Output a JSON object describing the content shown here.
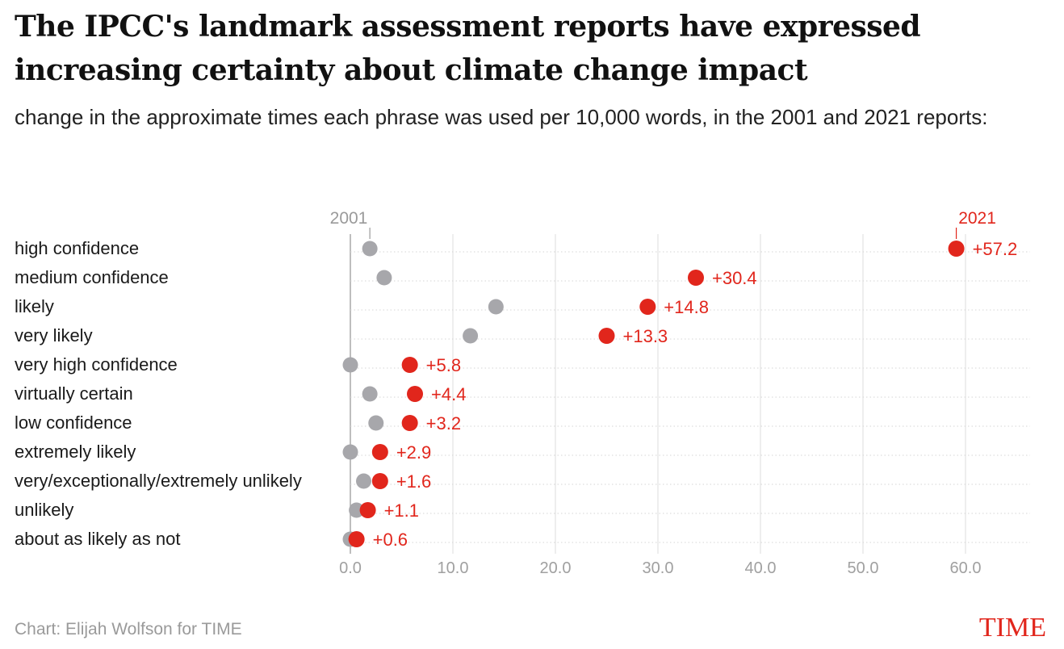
{
  "header": {
    "title": "The IPCC's landmark assessment reports have expressed increasing certainty about climate change impact",
    "subtitle": "change in the approximate times each phrase was used per 10,000 words, in the 2001 and 2021 reports:"
  },
  "footer": {
    "credit": "Chart: Elijah Wolfson for TIME",
    "logo": "TIME"
  },
  "colors": {
    "start": "#a7a7ab",
    "end": "#e1261c",
    "label": "#e1261c",
    "grid": "#e3e3e3",
    "axis_text": "#a0a0a0"
  },
  "chart_data": {
    "type": "dot-plot",
    "title": "",
    "xlabel": "",
    "ylabel": "",
    "xlim": [
      0,
      60
    ],
    "xticks": [
      0,
      10,
      20,
      30,
      40,
      50,
      60
    ],
    "tick_labels": [
      "0.0",
      "10.0",
      "20.0",
      "30.0",
      "40.0",
      "50.0",
      "60.0"
    ],
    "legend": {
      "start": "2001",
      "end": "2021"
    },
    "rows": [
      {
        "label": "high confidence",
        "start": 1.9,
        "end": 59.1,
        "change": "+57.2"
      },
      {
        "label": "medium confidence",
        "start": 3.3,
        "end": 33.7,
        "change": "+30.4"
      },
      {
        "label": "likely",
        "start": 14.2,
        "end": 29.0,
        "change": "+14.8"
      },
      {
        "label": "very likely",
        "start": 11.7,
        "end": 25.0,
        "change": "+13.3"
      },
      {
        "label": "very high confidence",
        "start": 0.0,
        "end": 5.8,
        "change": "+5.8"
      },
      {
        "label": "virtually certain",
        "start": 1.9,
        "end": 6.3,
        "change": "+4.4"
      },
      {
        "label": "low confidence",
        "start": 2.5,
        "end": 5.8,
        "change": "+3.2"
      },
      {
        "label": "extremely likely",
        "start": 0.0,
        "end": 2.9,
        "change": "+2.9"
      },
      {
        "label": "very/exceptionally/extremely unlikely",
        "start": 1.3,
        "end": 2.9,
        "change": "+1.6"
      },
      {
        "label": "unlikely",
        "start": 0.6,
        "end": 1.7,
        "change": "+1.1"
      },
      {
        "label": "about as likely as not",
        "start": 0.0,
        "end": 0.6,
        "change": "+0.6"
      }
    ]
  }
}
